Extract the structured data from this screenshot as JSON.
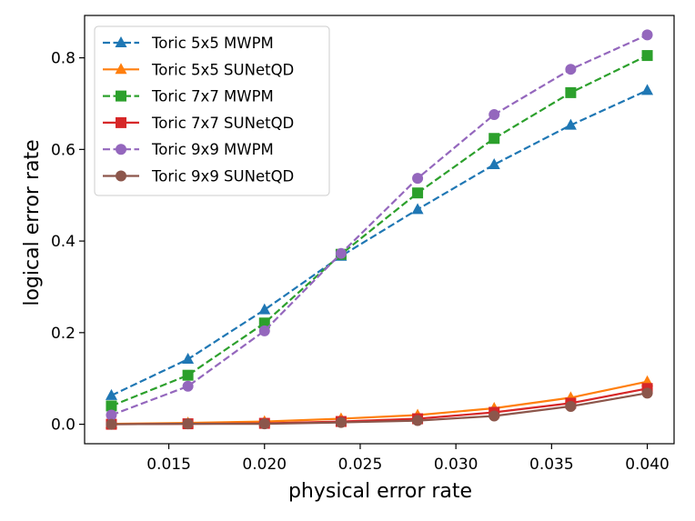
{
  "chart_data": {
    "type": "line",
    "title": "",
    "xlabel": "physical error rate",
    "ylabel": "logical error rate",
    "xlim": [
      0.0106,
      0.0414
    ],
    "ylim": [
      -0.0425,
      0.8925
    ],
    "xticks": [
      0.015,
      0.02,
      0.025,
      0.03,
      0.035,
      0.04
    ],
    "xtick_labels": [
      "0.015",
      "0.020",
      "0.025",
      "0.030",
      "0.035",
      "0.040"
    ],
    "yticks": [
      0.0,
      0.2,
      0.4,
      0.6,
      0.8
    ],
    "ytick_labels": [
      "0.0",
      "0.2",
      "0.4",
      "0.6",
      "0.8"
    ],
    "grid": false,
    "legend_position": "upper-left",
    "x": [
      0.012,
      0.016,
      0.02,
      0.024,
      0.028,
      0.032,
      0.036,
      0.04
    ],
    "series": [
      {
        "name": "Toric 5x5 MWPM",
        "color": "#1f77b4",
        "marker": "triangle",
        "dashed": true,
        "values": [
          0.063,
          0.142,
          0.25,
          0.367,
          0.469,
          0.567,
          0.653,
          0.729
        ]
      },
      {
        "name": "Toric 5x5 SUNetQD",
        "color": "#ff7f0e",
        "marker": "triangle",
        "dashed": false,
        "values": [
          0.001,
          0.003,
          0.006,
          0.012,
          0.02,
          0.035,
          0.058,
          0.093
        ]
      },
      {
        "name": "Toric 7x7 MWPM",
        "color": "#2ca02c",
        "marker": "square",
        "dashed": true,
        "values": [
          0.04,
          0.107,
          0.221,
          0.371,
          0.505,
          0.624,
          0.724,
          0.805
        ]
      },
      {
        "name": "Toric 7x7 SUNetQD",
        "color": "#d62728",
        "marker": "square",
        "dashed": false,
        "values": [
          0.0,
          0.001,
          0.002,
          0.006,
          0.012,
          0.026,
          0.046,
          0.078
        ]
      },
      {
        "name": "Toric 9x9 MWPM",
        "color": "#9467bd",
        "marker": "circle",
        "dashed": true,
        "values": [
          0.02,
          0.083,
          0.204,
          0.373,
          0.537,
          0.676,
          0.775,
          0.85
        ]
      },
      {
        "name": "Toric 9x9 SUNetQD",
        "color": "#8c564b",
        "marker": "circle",
        "dashed": false,
        "values": [
          0.0,
          0.001,
          0.001,
          0.004,
          0.008,
          0.018,
          0.039,
          0.068
        ]
      }
    ]
  }
}
